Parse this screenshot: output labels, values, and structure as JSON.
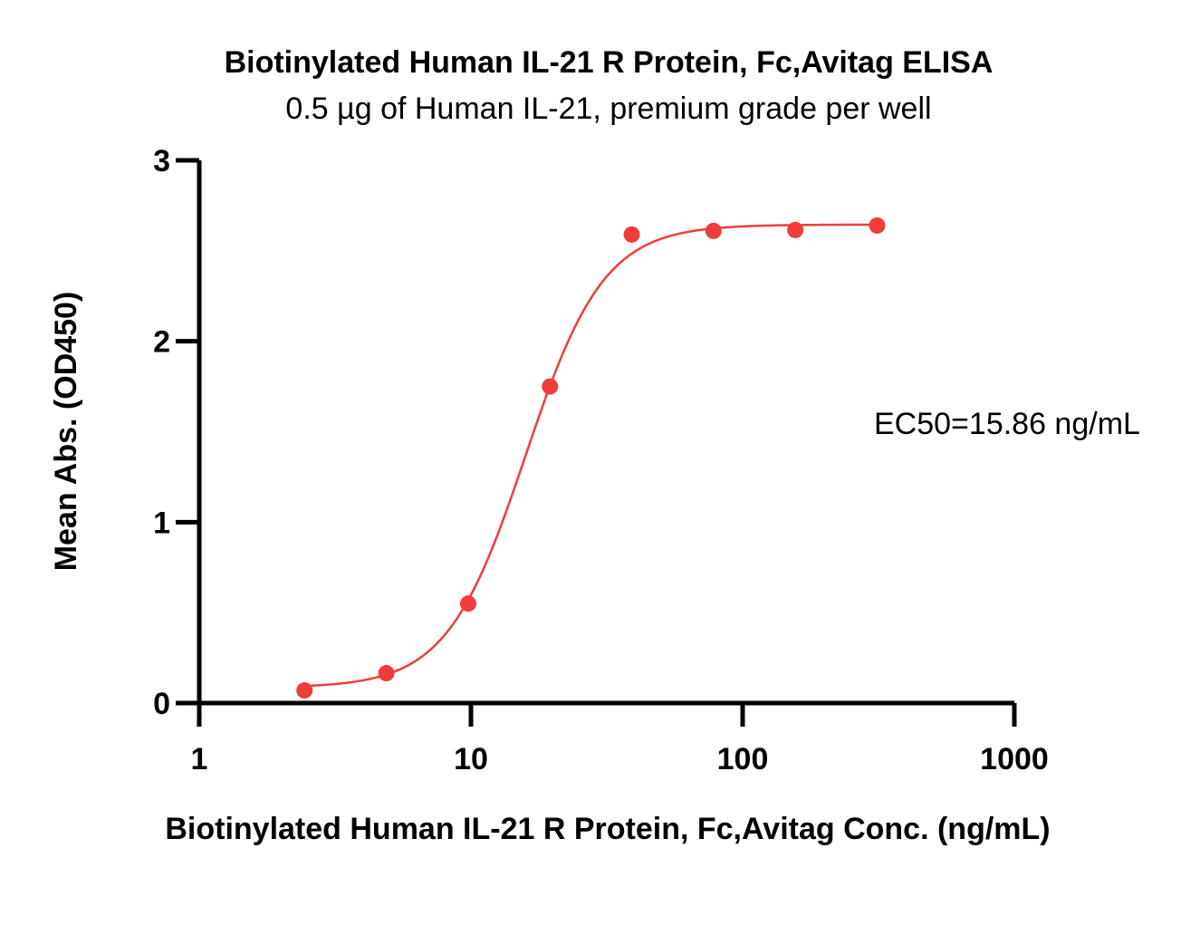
{
  "chart_data": {
    "type": "scatter",
    "title": "Biotinylated Human IL-21 R Protein, Fc,Avitag ELISA",
    "subtitle": "0.5 µg of Human IL-21, premium grade per well",
    "xlabel": "Biotinylated Human IL-21 R Protein, Fc,Avitag Conc. (ng/mL)",
    "ylabel": "Mean Abs. (OD450)",
    "x_scale": "log",
    "xlim": [
      1,
      1000
    ],
    "ylim": [
      0,
      3
    ],
    "x_ticks": [
      1,
      10,
      100,
      1000
    ],
    "x_tick_labels": [
      "1",
      "10",
      "100",
      "1000"
    ],
    "y_ticks": [
      0,
      1,
      2,
      3
    ],
    "y_tick_labels": [
      "0",
      "1",
      "2",
      "3"
    ],
    "grid": false,
    "series": [
      {
        "x": [
          2.44,
          4.88,
          9.77,
          19.53,
          39.06,
          78.13,
          156.25,
          312.5
        ],
        "y": [
          0.07,
          0.165,
          0.55,
          1.75,
          2.59,
          2.61,
          2.615,
          2.64
        ],
        "color": "#f03c3c",
        "fit": {
          "model": "4PL",
          "bottom": 0.085,
          "top": 2.645,
          "ec50": 15.86,
          "hill": 3.0
        }
      }
    ],
    "annotations": [
      {
        "text": "EC50=15.86 ng/mL"
      }
    ]
  }
}
